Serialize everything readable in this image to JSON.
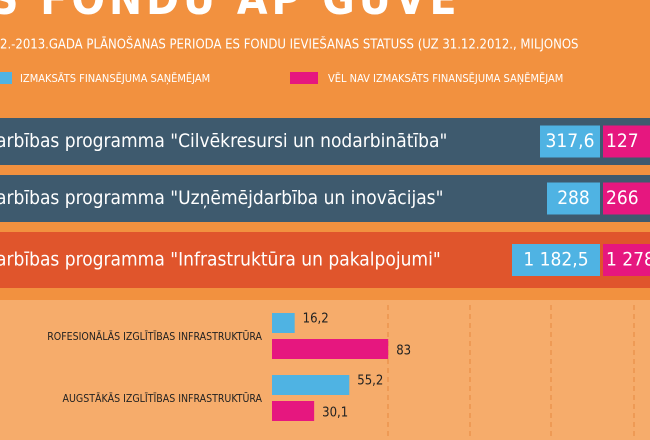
{
  "header": {
    "title": "S FONDU AP GUVE",
    "subtitle": "2.-2013.GADA PLĀNOŠANAS PERIODA ES FONDU IEVIEŠANAS STATUSS (UZ 31.12.2012., MILJONOS"
  },
  "legend": [
    "IZMAKSĀTS FINANSĒJUMA SAŅĒMĒJAM",
    "VĒL NAV IZMAKSĀTS FINANSĒJUMA SAŅĒMĒJAM"
  ],
  "programs": [
    {
      "label": "arbības programma \"Cilvēkresursi un nodarbinātība\"",
      "paid": "317,6",
      "unpaid": "127"
    },
    {
      "label": "arbības programma \"Uzņēmējdarbība un inovācijas\"",
      "paid": "288",
      "unpaid": "266"
    },
    {
      "label": "arbības programma \"Infrastruktūra un pakalpojumi\"",
      "paid": "1 182,5",
      "unpaid": "1 278"
    }
  ],
  "chart_data": {
    "type": "hbar",
    "categories": [
      "ROFESIONĀLĀS IZGLĪTĪBAS INFRASTRUKTŪRA",
      "AUGSTĀKĀS IZGLĪTĪBAS INFRASTRUKTŪRA"
    ],
    "xlim": [
      0,
      270
    ],
    "series": [
      {
        "name": "IZMAKSĀTS FINANSĒJUMA SAŅĒMĒJAM",
        "color": "#4fb3e3",
        "values": [
          16.2,
          55.2
        ],
        "value_labels": [
          "16,2",
          "55,2"
        ]
      },
      {
        "name": "VĒL NAV IZMAKSĀTS FINANSĒJUMA SAŅĒMĒJAM",
        "color": "#e6177f",
        "values": [
          83,
          30.1
        ],
        "value_labels": [
          "83",
          "30,1"
        ]
      }
    ]
  }
}
